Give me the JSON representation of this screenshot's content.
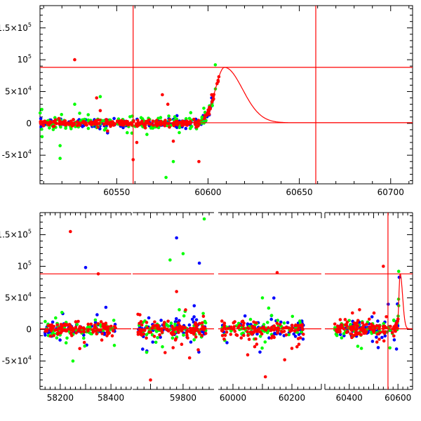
{
  "chart_data": [
    {
      "id": "top",
      "type": "scatter",
      "title": "",
      "xlabel": "",
      "ylabel": "",
      "xlim": [
        60508,
        60712
      ],
      "ylim": [
        -95000,
        185000
      ],
      "x_ticks": [
        {
          "v": 60550,
          "label": "60550"
        },
        {
          "v": 60600,
          "label": "60600"
        },
        {
          "v": 60650,
          "label": "60650"
        },
        {
          "v": 60700,
          "label": "60700"
        }
      ],
      "y_ticks": [
        {
          "v": 150000,
          "base": "1.5×10",
          "exp": "5"
        },
        {
          "v": 100000,
          "base": "10",
          "exp": "5"
        },
        {
          "v": 50000,
          "base": "5×10",
          "exp": "4"
        },
        {
          "v": 0,
          "base": "0",
          "exp": ""
        },
        {
          "v": -50000,
          "base": "-5×10",
          "exp": "4"
        }
      ],
      "hlines": [
        88000,
        1000
      ],
      "vlines": [
        60559,
        60659
      ],
      "line_color": "#ff0000",
      "model_curve": {
        "peak_x": 60609,
        "peak_y": 88000,
        "rise_width": 7,
        "decay_width": 14,
        "baseline": 1000,
        "x_start": 60575,
        "x_end": 60712
      },
      "series": [
        {
          "color": "#0000ff",
          "x_range": [
            60508,
            60603
          ],
          "n": 190,
          "scatter": 3500,
          "outliers": [
            [
              60545,
              -15000
            ],
            [
              60583,
              12000
            ],
            [
              60602,
              40000
            ]
          ]
        },
        {
          "color": "#00ff00",
          "x_range": [
            60508,
            60605
          ],
          "n": 160,
          "scatter": 6000,
          "outliers": [
            [
              60509,
              22000
            ],
            [
              60511,
              3000
            ],
            [
              60519,
              -35000
            ],
            [
              60519,
              -55000
            ],
            [
              60527,
              30000
            ],
            [
              60541,
              42000
            ],
            [
              60577,
              -85000
            ],
            [
              60581,
              -60000
            ],
            [
              60604,
              92000
            ]
          ]
        },
        {
          "color": "#ff0000",
          "x_range": [
            60508,
            60606
          ],
          "n": 260,
          "scatter": 2500,
          "outliers": [
            [
              60527,
              100000
            ],
            [
              60539,
              40000
            ],
            [
              60541,
              20000
            ],
            [
              60545,
              -12000
            ],
            [
              60559,
              -57000
            ],
            [
              60561,
              -30000
            ],
            [
              60575,
              45000
            ],
            [
              60578,
              30000
            ],
            [
              60581,
              -28000
            ],
            [
              60595,
              -60000
            ],
            [
              60602,
              45000
            ]
          ]
        }
      ]
    },
    {
      "id": "bottom",
      "type": "scatter",
      "title": "",
      "xlabel": "",
      "ylabel": "",
      "ylim": [
        -95000,
        185000
      ],
      "segments": [
        {
          "xlim": [
            58120,
            58480
          ],
          "ticks": [
            {
              "v": 58200,
              "label": "58200"
            },
            {
              "v": 58400,
              "label": "58400"
            }
          ]
        },
        {
          "xlim": [
            59645,
            59895
          ],
          "ticks": [
            {
              "v": 59800,
              "label": "59800"
            }
          ]
        },
        {
          "xlim": [
            59950,
            60300
          ],
          "ticks": [
            {
              "v": 60000,
              "label": "60000"
            },
            {
              "v": 60200,
              "label": "60200"
            }
          ]
        },
        {
          "xlim": [
            60300,
            60660
          ],
          "ticks": [
            {
              "v": 60400,
              "label": "60400"
            },
            {
              "v": 60600,
              "label": "60600"
            }
          ]
        }
      ],
      "y_ticks": [
        {
          "v": 150000,
          "base": "1.5×10",
          "exp": "5"
        },
        {
          "v": 100000,
          "base": "10",
          "exp": "5"
        },
        {
          "v": 50000,
          "base": "5×10",
          "exp": "4"
        },
        {
          "v": 0,
          "base": "0",
          "exp": ""
        },
        {
          "v": -50000,
          "base": "-5×10",
          "exp": "4"
        }
      ],
      "hlines": [
        88000,
        1000
      ],
      "vlines": [
        60559
      ],
      "line_color": "#ff0000",
      "model_curve": {
        "peak_x": 60609,
        "peak_y": 88000,
        "rise_width": 7,
        "decay_width": 14,
        "baseline": 1000,
        "x_start": 60560,
        "x_end": 60660
      },
      "clusters": [
        {
          "x_range": [
            58140,
            58420
          ],
          "scatter": 14000
        },
        {
          "x_range": [
            59660,
            59870
          ],
          "scatter": 18000
        },
        {
          "x_range": [
            59960,
            60240
          ],
          "scatter": 18000
        },
        {
          "x_range": [
            60340,
            60605
          ],
          "scatter": 16000
        }
      ],
      "series": [
        {
          "color": "#0000ff",
          "n_per_cluster": 70,
          "outliers": [
            [
              58210,
              25000
            ],
            [
              58300,
              98000
            ],
            [
              58380,
              35000
            ],
            [
              59780,
              145000
            ],
            [
              59850,
              105000
            ],
            [
              60560,
              40000
            ]
          ]
        },
        {
          "color": "#00ff00",
          "n_per_cluster": 70,
          "outliers": [
            [
              58250,
              -50000
            ],
            [
              59760,
              110000
            ],
            [
              59800,
              120000
            ],
            [
              59865,
              175000
            ],
            [
              60100,
              50000
            ],
            [
              60450,
              -30000
            ],
            [
              60603,
              92000
            ]
          ]
        },
        {
          "color": "#ff0000",
          "n_per_cluster": 110,
          "outliers": [
            [
              58240,
              155000
            ],
            [
              58350,
              88000
            ],
            [
              59700,
              -80000
            ],
            [
              59780,
              60000
            ],
            [
              59820,
              -45000
            ],
            [
              60110,
              -75000
            ],
            [
              60150,
              90000
            ],
            [
              60200,
              -30000
            ],
            [
              60540,
              100000
            ]
          ]
        }
      ]
    }
  ]
}
